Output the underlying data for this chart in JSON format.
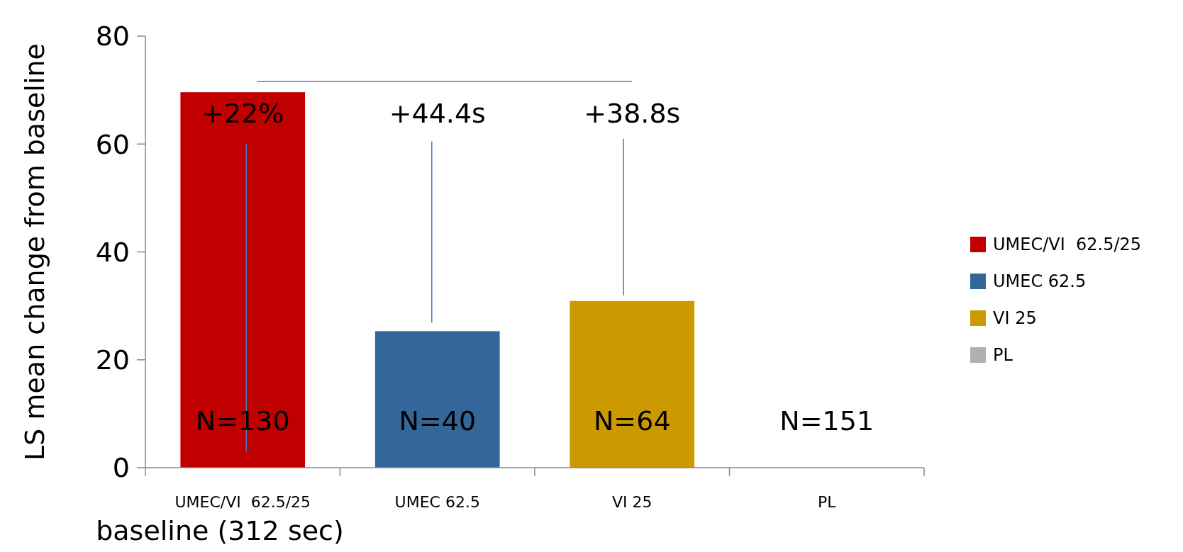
{
  "chart_data": {
    "type": "bar",
    "ylabel": "LS mean change from baseline",
    "xlabel": "baseline (312 sec)",
    "categories": [
      "UMEC/VI  62.5/25",
      "UMEC 62.5",
      "VI 25",
      "PL"
    ],
    "series": [
      {
        "name": "UMEC/VI  62.5/25",
        "color": "#c00000",
        "values": [
          69.6,
          null,
          null,
          null
        ]
      },
      {
        "name": "UMEC 62.5",
        "color": "#336699",
        "values": [
          null,
          25.3,
          null,
          null
        ]
      },
      {
        "name": "VI 25",
        "color": "#cc9900",
        "values": [
          null,
          null,
          30.9,
          null
        ]
      },
      {
        "name": "PL",
        "color": "#b0b0b0",
        "values": [
          null,
          null,
          null,
          0
        ]
      }
    ],
    "ylim": [
      0,
      80
    ],
    "yticks": [
      0,
      20,
      40,
      60,
      80
    ],
    "grid": false,
    "legend": "right",
    "annotations": [
      "+22%",
      "+44.4s",
      "+38.8s",
      "N=130",
      "N=40",
      "N=64",
      "N=151"
    ]
  }
}
